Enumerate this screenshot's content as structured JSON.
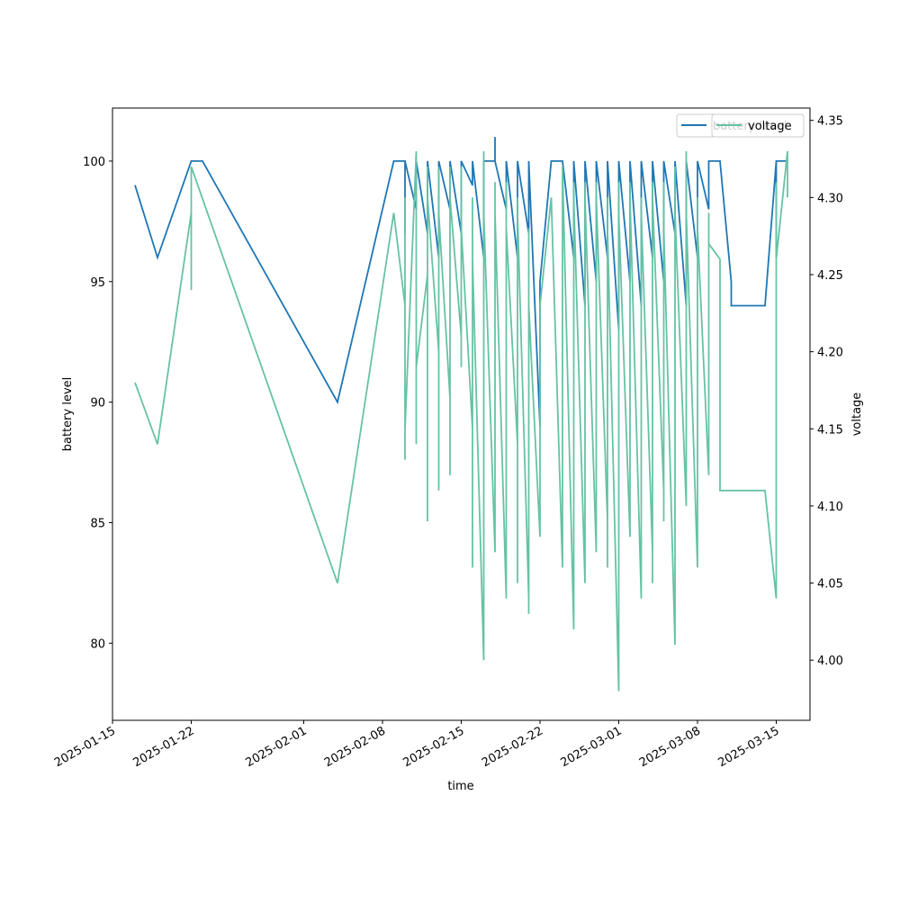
{
  "chart_data": {
    "type": "line",
    "xlabel": "time",
    "ylabel": "battery level",
    "y2label": "voltage",
    "xlim": [
      "2025-01-15",
      "2025-03-18"
    ],
    "xticks": [
      "2025-01-15",
      "2025-01-22",
      "2025-02-01",
      "2025-02-08",
      "2025-02-15",
      "2025-02-22",
      "2025-03-01",
      "2025-03-08",
      "2025-03-15"
    ],
    "ylim": [
      76.8,
      102.2
    ],
    "yticks": [
      80,
      85,
      90,
      95,
      100
    ],
    "y2lim": [
      3.961,
      4.358
    ],
    "y2ticks": [
      {
        "value": 4.0,
        "label": "4.00"
      },
      4.05,
      {
        "value": 4.1,
        "label": "4.10"
      },
      4.15,
      {
        "value": 4.2,
        "label": "4.20"
      },
      4.25,
      {
        "value": 4.3,
        "label": "4.30"
      },
      4.35
    ],
    "legend": "upper right",
    "series": [
      {
        "name": "battery level",
        "color": "#1f77b4",
        "x": [
          "2025-01-17",
          "2025-01-19",
          "2025-01-22",
          "2025-01-23",
          "2025-02-04",
          "2025-02-09",
          "2025-02-10",
          "2025-02-10",
          "2025-02-10",
          "2025-02-11",
          "2025-02-11",
          "2025-02-12",
          "2025-02-12",
          "2025-02-13",
          "2025-02-13",
          "2025-02-14",
          "2025-02-14",
          "2025-02-15",
          "2025-02-15",
          "2025-02-16",
          "2025-02-16",
          "2025-02-17",
          "2025-02-17",
          "2025-02-18",
          "2025-02-18",
          "2025-02-18",
          "2025-02-19",
          "2025-02-19",
          "2025-02-20",
          "2025-02-20",
          "2025-02-21",
          "2025-02-21",
          "2025-02-22",
          "2025-02-22",
          "2025-02-23",
          "2025-02-24",
          "2025-02-25",
          "2025-02-25",
          "2025-02-26",
          "2025-02-26",
          "2025-02-27",
          "2025-02-27",
          "2025-02-28",
          "2025-02-28",
          "2025-03-01",
          "2025-03-01",
          "2025-03-02",
          "2025-03-02",
          "2025-03-03",
          "2025-03-03",
          "2025-03-04",
          "2025-03-04",
          "2025-03-05",
          "2025-03-05",
          "2025-03-06",
          "2025-03-06",
          "2025-03-07",
          "2025-03-07",
          "2025-03-08",
          "2025-03-08",
          "2025-03-09",
          "2025-03-09",
          "2025-03-10",
          "2025-03-11",
          "2025-03-11",
          "2025-03-14",
          "2025-03-15",
          "2025-03-15",
          "2025-03-15",
          "2025-03-16"
        ],
        "values": [
          99,
          96,
          100,
          100,
          90,
          100,
          100,
          97,
          100,
          98,
          100,
          97,
          100,
          96,
          100,
          98,
          100,
          97,
          100,
          99,
          100,
          96,
          100,
          100,
          101,
          100,
          98,
          100,
          96,
          100,
          97,
          100,
          89,
          95,
          100,
          100,
          96,
          100,
          94,
          100,
          95,
          100,
          96,
          100,
          93,
          100,
          95,
          100,
          94,
          100,
          96,
          100,
          95,
          100,
          97,
          100,
          94,
          100,
          96,
          100,
          98,
          100,
          100,
          95,
          94,
          94,
          100,
          96,
          100,
          100
        ]
      },
      {
        "name": "voltage",
        "color": "#66c2a5",
        "axis": "y2",
        "x": [
          "2025-01-17",
          "2025-01-19",
          "2025-01-22",
          "2025-01-22",
          "2025-01-22",
          "2025-02-04",
          "2025-02-09",
          "2025-02-10",
          "2025-02-10",
          "2025-02-10",
          "2025-02-10",
          "2025-02-11",
          "2025-02-11",
          "2025-02-11",
          "2025-02-11",
          "2025-02-12",
          "2025-02-12",
          "2025-02-12",
          "2025-02-12",
          "2025-02-13",
          "2025-02-13",
          "2025-02-13",
          "2025-02-13",
          "2025-02-14",
          "2025-02-14",
          "2025-02-14",
          "2025-02-14",
          "2025-02-15",
          "2025-02-15",
          "2025-02-15",
          "2025-02-15",
          "2025-02-16",
          "2025-02-16",
          "2025-02-16",
          "2025-02-16",
          "2025-02-17",
          "2025-02-17",
          "2025-02-17",
          "2025-02-17",
          "2025-02-18",
          "2025-02-18",
          "2025-02-18",
          "2025-02-18",
          "2025-02-19",
          "2025-02-19",
          "2025-02-19",
          "2025-02-19",
          "2025-02-20",
          "2025-02-20",
          "2025-02-20",
          "2025-02-20",
          "2025-02-21",
          "2025-02-21",
          "2025-02-21",
          "2025-02-21",
          "2025-02-22",
          "2025-02-22",
          "2025-02-23",
          "2025-02-24",
          "2025-02-24",
          "2025-02-25",
          "2025-02-25",
          "2025-02-25",
          "2025-02-25",
          "2025-02-26",
          "2025-02-26",
          "2025-02-26",
          "2025-02-26",
          "2025-02-27",
          "2025-02-27",
          "2025-02-27",
          "2025-02-27",
          "2025-02-28",
          "2025-02-28",
          "2025-02-28",
          "2025-02-28",
          "2025-03-01",
          "2025-03-01",
          "2025-03-01",
          "2025-03-01",
          "2025-03-02",
          "2025-03-02",
          "2025-03-02",
          "2025-03-02",
          "2025-03-03",
          "2025-03-03",
          "2025-03-03",
          "2025-03-03",
          "2025-03-04",
          "2025-03-04",
          "2025-03-04",
          "2025-03-04",
          "2025-03-05",
          "2025-03-05",
          "2025-03-05",
          "2025-03-05",
          "2025-03-06",
          "2025-03-06",
          "2025-03-06",
          "2025-03-06",
          "2025-03-07",
          "2025-03-07",
          "2025-03-07",
          "2025-03-07",
          "2025-03-08",
          "2025-03-08",
          "2025-03-08",
          "2025-03-08",
          "2025-03-09",
          "2025-03-09",
          "2025-03-09",
          "2025-03-09",
          "2025-03-10",
          "2025-03-10",
          "2025-03-14",
          "2025-03-15",
          "2025-03-15",
          "2025-03-15",
          "2025-03-15",
          "2025-03-15",
          "2025-03-16",
          "2025-03-16"
        ],
        "values": [
          4.18,
          4.14,
          4.29,
          4.24,
          4.32,
          4.05,
          4.29,
          4.23,
          4.13,
          4.3,
          4.15,
          4.33,
          4.14,
          4.28,
          4.19,
          4.25,
          4.32,
          4.09,
          4.3,
          4.2,
          4.32,
          4.11,
          4.29,
          4.17,
          4.32,
          4.12,
          4.3,
          4.21,
          4.32,
          4.19,
          4.28,
          4.15,
          4.3,
          4.06,
          4.26,
          4.0,
          4.33,
          4.14,
          4.29,
          4.07,
          4.31,
          4.13,
          4.29,
          4.04,
          4.31,
          4.06,
          4.28,
          4.14,
          4.3,
          4.05,
          4.29,
          4.04,
          4.28,
          4.03,
          4.23,
          4.08,
          4.23,
          4.3,
          4.06,
          4.32,
          4.02,
          4.31,
          4.07,
          4.3,
          4.05,
          4.31,
          4.13,
          4.3,
          4.07,
          4.31,
          4.11,
          4.3,
          4.09,
          4.3,
          4.06,
          4.28,
          3.98,
          4.31,
          4.04,
          4.29,
          4.08,
          4.31,
          4.12,
          4.3,
          4.04,
          4.3,
          4.09,
          4.29,
          4.07,
          4.31,
          4.05,
          4.3,
          4.11,
          4.31,
          4.09,
          4.28,
          4.01,
          4.32,
          4.03,
          4.29,
          4.1,
          4.33,
          4.11,
          4.29,
          4.06,
          4.3,
          4.17,
          4.28,
          4.12,
          4.29,
          4.16,
          4.27,
          4.26,
          4.11,
          4.11,
          4.04,
          4.31,
          4.18,
          4.3,
          4.26,
          4.33,
          4.3
        ]
      }
    ]
  }
}
